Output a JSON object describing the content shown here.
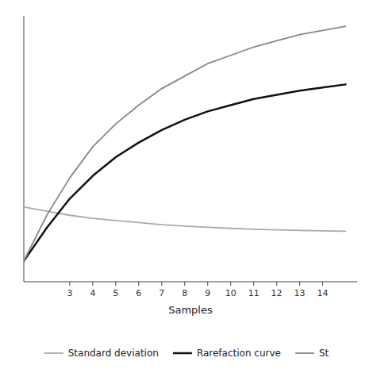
{
  "chart_data": {
    "type": "line",
    "title": "",
    "xlabel": "Samples",
    "x": [
      1,
      2,
      3,
      4,
      5,
      6,
      7,
      8,
      9,
      10,
      11,
      12,
      13,
      14,
      15
    ],
    "series": [
      {
        "name": "Standard deviation",
        "color": "#aaaaaa",
        "values": [
          28,
          26,
          24,
          22.5,
          21.5,
          20.5,
          19.5,
          18.8,
          18.2,
          17.7,
          17.3,
          17.0,
          16.7,
          16.5,
          16.3
        ]
      },
      {
        "name": "Rarefaction curve",
        "color": "#111111",
        "values": [
          2,
          18,
          32,
          43,
          52,
          59,
          65,
          70,
          74,
          77,
          80,
          82,
          84,
          85.5,
          87
        ]
      },
      {
        "name": "St",
        "color": "#888888",
        "values": [
          2,
          24,
          42,
          57,
          68,
          77,
          85,
          91,
          97,
          101,
          105,
          108,
          111,
          113,
          115
        ]
      }
    ],
    "xlim": [
      1.0,
      15.5
    ],
    "ylim": [
      -8,
      120
    ],
    "xticks": [
      3,
      4,
      5,
      6,
      7,
      8,
      9,
      10,
      11,
      12,
      13,
      14
    ],
    "yticks": [],
    "tick_labels": "x",
    "grid": false,
    "legend": "bottom"
  }
}
